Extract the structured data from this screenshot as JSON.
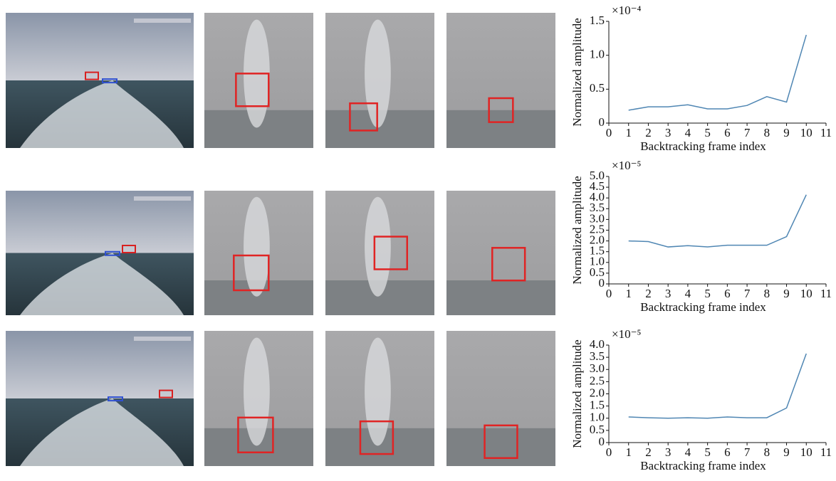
{
  "chart_data": [
    {
      "type": "line",
      "multiplier": "×10⁻⁴",
      "xlabel": "Backtracking frame index",
      "ylabel": "Normalized amplitude",
      "x": [
        1,
        2,
        3,
        4,
        5,
        6,
        7,
        8,
        9,
        10
      ],
      "values": [
        0.19,
        0.24,
        0.24,
        0.27,
        0.21,
        0.21,
        0.26,
        0.39,
        0.31,
        1.3
      ],
      "color": "#4f86b3",
      "xlim": [
        0,
        11
      ],
      "xticks": [
        0,
        1,
        2,
        3,
        4,
        5,
        6,
        7,
        8,
        9,
        10,
        11
      ],
      "ylim": [
        0,
        1.5
      ],
      "yticks": [
        0,
        0.5,
        {
          "value": 1,
          "label": "1.0"
        },
        1.5
      ]
    },
    {
      "type": "line",
      "multiplier": "×10⁻⁵",
      "xlabel": "Backtracking frame index",
      "ylabel": "Normalized amplitude",
      "x": [
        1,
        2,
        3,
        4,
        5,
        6,
        7,
        8,
        9,
        10
      ],
      "values": [
        2.0,
        1.97,
        1.72,
        1.78,
        1.72,
        1.8,
        1.8,
        1.8,
        2.2,
        4.15
      ],
      "color": "#4f86b3",
      "xlim": [
        0,
        11
      ],
      "xticks": [
        0,
        1,
        2,
        3,
        4,
        5,
        6,
        7,
        8,
        9,
        10,
        11
      ],
      "ylim": [
        0,
        5
      ],
      "yticks": [
        0,
        0.5,
        {
          "value": 1,
          "label": "1.0"
        },
        1.5,
        {
          "value": 2,
          "label": "2.0"
        },
        2.5,
        {
          "value": 3,
          "label": "3.0"
        },
        3.5,
        {
          "value": 4,
          "label": "4.0"
        },
        4.5,
        {
          "value": 5,
          "label": "5.0"
        }
      ]
    },
    {
      "type": "line",
      "multiplier": "×10⁻⁵",
      "xlabel": "Backtracking frame index",
      "ylabel": "Normalized amplitude",
      "x": [
        1,
        2,
        3,
        4,
        5,
        6,
        7,
        8,
        9,
        10
      ],
      "values": [
        1.05,
        1.02,
        1.0,
        1.02,
        1.0,
        1.05,
        1.02,
        1.02,
        1.42,
        3.65
      ],
      "color": "#4f86b3",
      "xlim": [
        0,
        11
      ],
      "xticks": [
        0,
        1,
        2,
        3,
        4,
        5,
        6,
        7,
        8,
        9,
        10,
        11
      ],
      "ylim": [
        0,
        4
      ],
      "yticks": [
        0,
        0.5,
        {
          "value": 1,
          "label": "1.0"
        },
        1.5,
        {
          "value": 2,
          "label": "2.0"
        },
        2.5,
        {
          "value": 3,
          "label": "3.0"
        },
        3.5,
        {
          "value": 4,
          "label": "4.0"
        }
      ]
    }
  ]
}
